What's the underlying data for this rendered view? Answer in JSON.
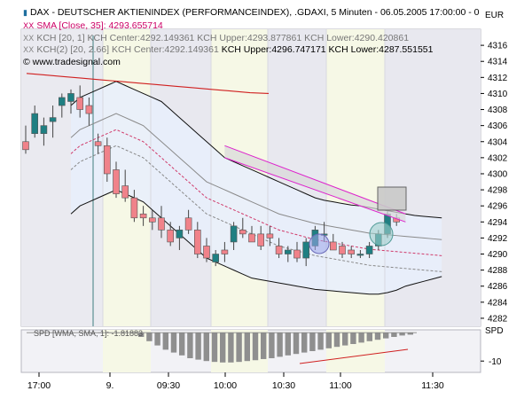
{
  "legend": {
    "line1": "DAX  - DEUTSCHER AKTIENINDEX (PERFORMANCEINDEX), .GDAXI, 5 Minuten - 06.05.2005 17:00:00 - 0",
    "line2": "SMA [Close, 35]: 4293.655714",
    "line3a": "KCH [20, 1] KCH Center:4292.149361 KCH Upper:4293.877861 KCH Lower:4290.420861",
    "line4a": "KCH(2) [20, 2.66] KCH Center:4292.149361",
    "line4b": "KCH Upper:4296.747171 KCH Lower:4287.551551",
    "watermark": "© www.tradesignal.com"
  },
  "currency": "EUR",
  "spd_label": "SPD",
  "spd_legend": "SPD [WMA, SMA, 1]: -1.81883",
  "spd_tick": "-10",
  "colors": {
    "up": "#1f7f82",
    "down": "#f0828a",
    "sma": "#d02020",
    "band_gray": "#606060",
    "trend": "#dd22cc",
    "legend_red": "#cc0066"
  },
  "chart_data": {
    "type": "candlestick",
    "interval": "5 min",
    "y_unit": "EUR",
    "ylim": [
      4281,
      4318
    ],
    "y_ticks": [
      4282,
      4284,
      4286,
      4288,
      4290,
      4292,
      4294,
      4296,
      4298,
      4300,
      4302,
      4304,
      4306,
      4308,
      4310,
      4312,
      4314,
      4316
    ],
    "x_tick_labels": [
      "17:00",
      "9.",
      "09:30",
      "10:00",
      "10:30",
      "11:00",
      "11:30"
    ],
    "candles": [
      {
        "o": 4304.0,
        "h": 4306.0,
        "l": 4302.5,
        "c": 4303.0
      },
      {
        "o": 4305.0,
        "h": 4308.5,
        "l": 4304.5,
        "c": 4307.5
      },
      {
        "o": 4305.0,
        "h": 4307.0,
        "l": 4303.5,
        "c": 4306.0
      },
      {
        "o": 4306.5,
        "h": 4308.5,
        "l": 4304.5,
        "c": 4307.0
      },
      {
        "o": 4308.5,
        "h": 4310.0,
        "l": 4307.0,
        "c": 4309.5
      },
      {
        "o": 4309.0,
        "h": 4310.5,
        "l": 4307.5,
        "c": 4310.0
      },
      {
        "o": 4309.5,
        "h": 4311.0,
        "l": 4307.0,
        "c": 4308.0
      },
      {
        "o": 4308.5,
        "h": 4309.5,
        "l": 4306.0,
        "c": 4307.5
      },
      {
        "o": 4304.0,
        "h": 4305.0,
        "l": 4302.5,
        "c": 4303.5
      },
      {
        "o": 4303.5,
        "h": 4304.5,
        "l": 4299.0,
        "c": 4300.0
      },
      {
        "o": 4300.5,
        "h": 4301.5,
        "l": 4297.0,
        "c": 4297.5
      },
      {
        "o": 4298.5,
        "h": 4300.5,
        "l": 4296.5,
        "c": 4297.0
      },
      {
        "o": 4297.0,
        "h": 4298.0,
        "l": 4294.0,
        "c": 4294.5
      },
      {
        "o": 4295.0,
        "h": 4296.0,
        "l": 4293.5,
        "c": 4294.5
      },
      {
        "o": 4294.5,
        "h": 4295.5,
        "l": 4293.0,
        "c": 4294.0
      },
      {
        "o": 4294.5,
        "h": 4296.0,
        "l": 4292.0,
        "c": 4293.0
      },
      {
        "o": 4293.0,
        "h": 4294.0,
        "l": 4291.0,
        "c": 4291.5
      },
      {
        "o": 4292.0,
        "h": 4293.5,
        "l": 4290.5,
        "c": 4293.0
      },
      {
        "o": 4294.5,
        "h": 4295.5,
        "l": 4292.5,
        "c": 4293.0
      },
      {
        "o": 4293.0,
        "h": 4294.0,
        "l": 4289.5,
        "c": 4290.0
      },
      {
        "o": 4291.0,
        "h": 4292.0,
        "l": 4289.0,
        "c": 4289.5
      },
      {
        "o": 4289.0,
        "h": 4290.5,
        "l": 4288.5,
        "c": 4290.0
      },
      {
        "o": 4290.5,
        "h": 4291.5,
        "l": 4289.0,
        "c": 4290.0
      },
      {
        "o": 4291.5,
        "h": 4294.0,
        "l": 4290.5,
        "c": 4293.5
      },
      {
        "o": 4293.0,
        "h": 4294.5,
        "l": 4292.0,
        "c": 4292.5
      },
      {
        "o": 4292.5,
        "h": 4293.5,
        "l": 4291.5,
        "c": 4291.5
      },
      {
        "o": 4292.5,
        "h": 4293.5,
        "l": 4290.5,
        "c": 4291.0
      },
      {
        "o": 4292.5,
        "h": 4293.5,
        "l": 4291.0,
        "c": 4292.0
      },
      {
        "o": 4291.0,
        "h": 4292.0,
        "l": 4289.5,
        "c": 4290.0
      },
      {
        "o": 4290.0,
        "h": 4291.0,
        "l": 4289.0,
        "c": 4290.5
      },
      {
        "o": 4290.5,
        "h": 4291.5,
        "l": 4289.0,
        "c": 4289.5
      },
      {
        "o": 4289.5,
        "h": 4292.0,
        "l": 4288.5,
        "c": 4291.5
      },
      {
        "o": 4291.0,
        "h": 4293.5,
        "l": 4290.5,
        "c": 4293.0
      },
      {
        "o": 4292.5,
        "h": 4294.0,
        "l": 4291.5,
        "c": 4292.5
      },
      {
        "o": 4291.5,
        "h": 4292.5,
        "l": 4290.5,
        "c": 4290.5
      },
      {
        "o": 4291.0,
        "h": 4291.5,
        "l": 4289.5,
        "c": 4290.0
      },
      {
        "o": 4290.5,
        "h": 4291.0,
        "l": 4289.5,
        "c": 4290.0
      },
      {
        "o": 4290.0,
        "h": 4290.5,
        "l": 4289.5,
        "c": 4290.0
      },
      {
        "o": 4290.0,
        "h": 4291.5,
        "l": 4289.5,
        "c": 4291.0
      },
      {
        "o": 4291.0,
        "h": 4293.0,
        "l": 4290.5,
        "c": 4292.5
      },
      {
        "o": 4292.5,
        "h": 4295.5,
        "l": 4292.0,
        "c": 4295.0
      },
      {
        "o": 4294.5,
        "h": 4295.0,
        "l": 4293.5,
        "c": 4294.0
      }
    ],
    "sma_line": [
      4312.5,
      4312.3,
      4312.1,
      4311.9,
      4311.7,
      4311.5,
      4311.3,
      4311.1,
      4310.9,
      4310.7,
      4310.5,
      4310.3,
      4310.1,
      4310.0
    ],
    "kch_outer_upper": [
      4308.5,
      4309.5,
      4310.0,
      4310.5,
      4311.0,
      4311.5,
      4311.0,
      4310.5,
      4310.0,
      4309.5,
      4309.0,
      4308.0,
      4307.0,
      4306.0,
      4305.0,
      4304.0,
      4303.0,
      4302.0,
      4301.5,
      4301.0,
      4300.5,
      4300.0,
      4299.5,
      4299.0,
      4298.5,
      4298.0,
      4297.5,
      4297.0,
      4296.7,
      4296.5,
      4296.3,
      4296.1,
      4296.0,
      4295.8,
      4295.6,
      4295.4,
      4295.2,
      4295.0,
      4294.8,
      4294.7,
      4294.6,
      4294.5
    ],
    "kch_inner_upper": [
      4304.5,
      4305.5,
      4306.0,
      4306.5,
      4307.0,
      4307.5,
      4307.0,
      4306.5,
      4306.0,
      4305.0,
      4304.0,
      4303.0,
      4302.0,
      4301.0,
      4300.0,
      4299.0,
      4298.5,
      4298.0,
      4297.5,
      4297.0,
      4296.5,
      4296.0,
      4295.5,
      4295.0,
      4294.7,
      4294.4,
      4294.1,
      4293.8,
      4293.6,
      4293.4,
      4293.2,
      4293.0,
      4292.8,
      4292.6,
      4292.5,
      4292.4,
      4292.3,
      4292.2,
      4292.1,
      4292.0,
      4291.9,
      4291.8
    ],
    "kch_center": [
      4302.5,
      4303.5,
      4304.0,
      4304.5,
      4305.0,
      4305.5,
      4305.0,
      4304.5,
      4304.0,
      4303.0,
      4302.0,
      4301.0,
      4300.0,
      4299.0,
      4298.0,
      4297.0,
      4296.5,
      4296.0,
      4295.5,
      4295.0,
      4294.5,
      4294.0,
      4293.5,
      4293.0,
      4292.7,
      4292.4,
      4292.1,
      4291.8,
      4291.6,
      4291.4,
      4291.2,
      4291.0,
      4290.8,
      4290.6,
      4290.5,
      4290.4,
      4290.3,
      4290.2,
      4290.1,
      4290.0,
      4289.9,
      4289.8
    ],
    "kch_inner_lower": [
      4300.5,
      4301.5,
      4302.0,
      4302.5,
      4303.0,
      4303.5,
      4303.0,
      4302.5,
      4302.0,
      4301.0,
      4300.0,
      4299.0,
      4298.0,
      4297.0,
      4296.0,
      4295.0,
      4294.5,
      4294.0,
      4293.5,
      4293.0,
      4292.5,
      4292.0,
      4291.5,
      4291.0,
      4290.7,
      4290.4,
      4290.1,
      4289.8,
      4289.6,
      4289.4,
      4289.2,
      4289.0,
      4288.8,
      4288.6,
      4288.5,
      4288.4,
      4288.3,
      4288.2,
      4288.1,
      4288.0,
      4287.9,
      4287.8
    ],
    "kch_outer_lower": [
      4295.0,
      4296.0,
      4296.5,
      4297.0,
      4297.5,
      4298.0,
      4297.5,
      4297.0,
      4296.5,
      4295.5,
      4294.5,
      4293.5,
      4292.5,
      4291.5,
      4290.5,
      4289.5,
      4289.0,
      4288.5,
      4288.0,
      4287.5,
      4287.0,
      4286.8,
      4286.6,
      4286.4,
      4286.2,
      4286.0,
      4285.8,
      4285.6,
      4285.5,
      4285.4,
      4285.3,
      4285.2,
      4285.1,
      4285.0,
      4285.0,
      4285.2,
      4285.5,
      4286.0,
      4286.3,
      4286.6,
      4286.9,
      4287.2
    ],
    "trend_upper": [
      [
        22,
        4303.5
      ],
      [
        42,
        4295.0
      ]
    ],
    "trend_lower": [
      [
        22,
        4302.0
      ],
      [
        42,
        4294.0
      ]
    ],
    "spd": {
      "ylim": [
        -14,
        1
      ],
      "y_tick": -10,
      "values": [
        0,
        0,
        0,
        0,
        0,
        0,
        -1.5,
        -3,
        -4.5,
        -6,
        -7,
        -8,
        -9,
        -9.5,
        -10,
        -10.3,
        -10.5,
        -10.5,
        -10.3,
        -10,
        -9.7,
        -9.3,
        -9,
        -8.5,
        -8,
        -7.5,
        -7,
        -6.5,
        -6,
        -5.5,
        -5,
        -4.5,
        -4,
        -3.5,
        -3,
        -2.5,
        -2,
        -1.5,
        -1,
        -0.7
      ]
    }
  }
}
